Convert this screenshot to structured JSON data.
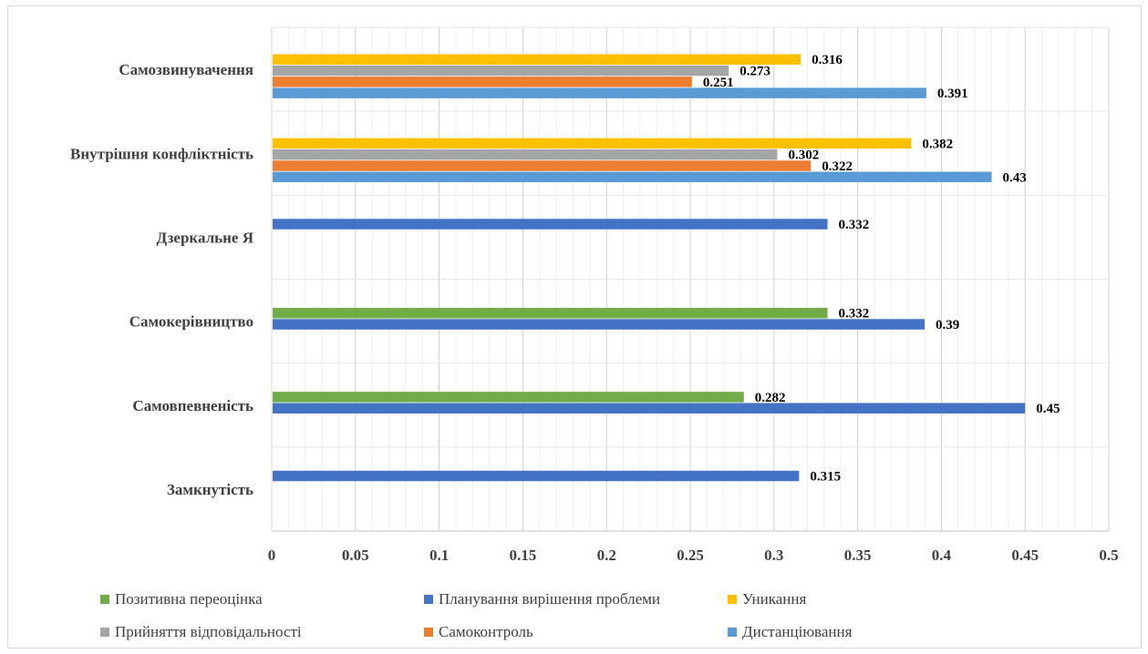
{
  "chart_data": {
    "type": "bar",
    "orientation": "horizontal",
    "categories": [
      "Самозвинувачення",
      "Внутрішня конфліктність",
      "Дзеркальне Я",
      "Самокерівництво",
      "Самовпевненість",
      "Замкнутість"
    ],
    "series": [
      {
        "name": "Позитивна переоцінка",
        "color": "#70ad47",
        "values": [
          null,
          null,
          null,
          0.332,
          0.282,
          null
        ]
      },
      {
        "name": "Планування вирішення проблеми",
        "color": "#4472c4",
        "values": [
          null,
          null,
          0.332,
          0.39,
          0.45,
          0.315
        ]
      },
      {
        "name": "Уникання",
        "color": "#ffc000",
        "values": [
          0.316,
          0.382,
          null,
          null,
          null,
          null
        ]
      },
      {
        "name": "Прийняття відповідальності",
        "color": "#a5a5a5",
        "values": [
          0.273,
          0.302,
          null,
          null,
          null,
          null
        ]
      },
      {
        "name": "Самоконтроль",
        "color": "#ed7d31",
        "values": [
          0.251,
          0.322,
          null,
          null,
          null,
          null
        ]
      },
      {
        "name": "Дистанціювання",
        "color": "#5b9bd5",
        "values": [
          0.391,
          0.43,
          null,
          null,
          null,
          null
        ]
      }
    ],
    "xlim": [
      0,
      0.5
    ],
    "xticks": [
      "0",
      "0.05",
      "0.1",
      "0.15",
      "0.2",
      "0.25",
      "0.3",
      "0.35",
      "0.4",
      "0.45",
      "0.5"
    ],
    "grid": true,
    "legend_position": "bottom"
  }
}
